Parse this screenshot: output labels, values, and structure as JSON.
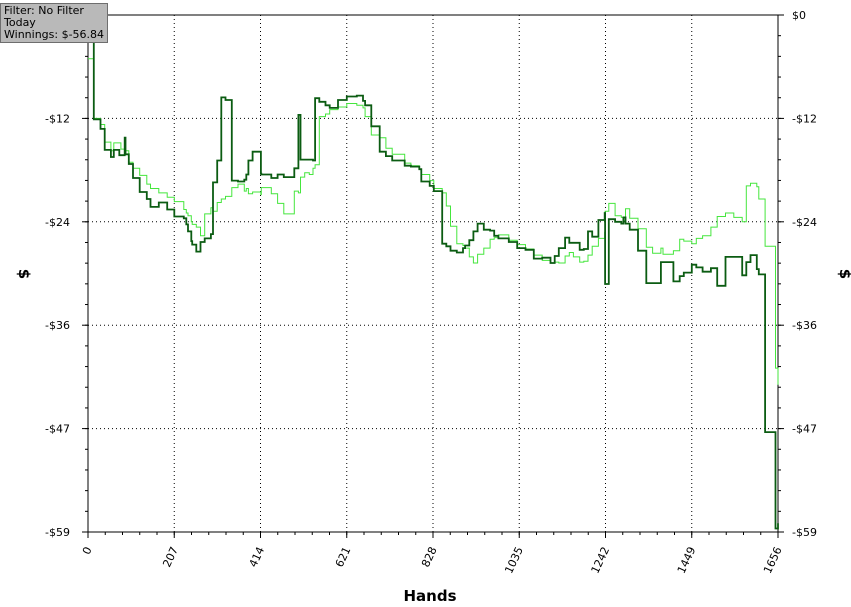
{
  "info_box": {
    "filter": "Filter: No Filter",
    "period": "Today",
    "winnings": "Winnings: $-56.84"
  },
  "chart_data": {
    "type": "line",
    "xlabel": "Hands",
    "ylabel": "$",
    "xlim": [
      0,
      1656
    ],
    "ylim": [
      -59,
      0
    ],
    "x_ticks": [
      "0",
      "207",
      "414",
      "621",
      "828",
      "1035",
      "1242",
      "1449",
      "1656"
    ],
    "y_ticks_left": [
      "$0",
      "-$12",
      "-$24",
      "-$36",
      "-$47",
      "-$59"
    ],
    "y_ticks_right": [
      "$0",
      "-$12",
      "-$24",
      "-$36",
      "-$47",
      "-$59"
    ],
    "y_tick_values": [
      0,
      -11.8,
      -23.6,
      -35.4,
      -47.2,
      -59
    ],
    "grid": true,
    "colors": {
      "dark_series": "#0b5c12",
      "light_series": "#45e63d"
    },
    "series": [
      {
        "x": [
          0,
          14,
          15,
          30,
          40,
          55,
          62,
          79,
          88,
          90,
          98,
          108,
          124,
          141,
          150,
          170,
          190,
          207,
          230,
          236,
          240,
          248,
          250,
          260,
          270,
          280,
          295,
          300,
          310,
          320,
          330,
          345,
          360,
          375,
          380,
          385,
          395,
          415,
          416,
          440,
          455,
          470,
          495,
          505,
          510,
          520,
          531,
          540,
          545,
          555,
          570,
          580,
          600,
          621,
          645,
          660,
          665,
          680,
          700,
          715,
          730,
          760,
          775,
          795,
          800,
          820,
          830,
          850,
          860,
          870,
          885,
          900,
          905,
          915,
          925,
          935,
          950,
          965,
          975,
          985,
          1010,
          1030,
          1050,
          1070,
          1090,
          1110,
          1120,
          1130,
          1145,
          1155,
          1165,
          1180,
          1190,
          1200,
          1210,
          1225,
          1240,
          1241,
          1250,
          1265,
          1280,
          1285,
          1290,
          1300,
          1320,
          1340,
          1355,
          1375,
          1380,
          1405,
          1420,
          1430,
          1449,
          1460,
          1475,
          1495,
          1510,
          1530,
          1550,
          1570,
          1580,
          1590,
          1605,
          1610,
          1625,
          1650,
          1656
        ],
        "y": [
          -5,
          -11.8,
          -11.8,
          -12.5,
          -14.5,
          -15.5,
          -14.6,
          -15.3,
          -14.8,
          -15.5,
          -16.8,
          -17.5,
          -18.3,
          -19.3,
          -19.8,
          -20.3,
          -20.8,
          -21.3,
          -22.2,
          -22.6,
          -22.9,
          -23.6,
          -23.9,
          -24.2,
          -25.2,
          -22.7,
          -22.0,
          -22.4,
          -21.4,
          -21.0,
          -20.7,
          -19.7,
          -19.3,
          -20.1,
          -19.8,
          -20.4,
          -20.2,
          -20.5,
          -19.7,
          -20.4,
          -21.5,
          -22.7,
          -20.1,
          -20.3,
          -18.5,
          -18.0,
          -18.2,
          -17.5,
          -17.1,
          -11.6,
          -11.3,
          -10.8,
          -10.5,
          -10.1,
          -10.3,
          -10.6,
          -11.6,
          -13.7,
          -14.0,
          -15.2,
          -15.9,
          -16.9,
          -17.2,
          -17.6,
          -18.2,
          -18.9,
          -19.8,
          -20.3,
          -21.8,
          -24.1,
          -26.1,
          -26.3,
          -26.6,
          -27.6,
          -28.3,
          -27.3,
          -26.6,
          -25.6,
          -25.4,
          -25.1,
          -25.7,
          -26.2,
          -26.7,
          -27.4,
          -28.0,
          -28.3,
          -28.2,
          -28.3,
          -27.5,
          -27.1,
          -27.6,
          -28.2,
          -28.1,
          -27.4,
          -26.4,
          -25.5,
          -24.8,
          -22.4,
          -21.5,
          -22.9,
          -23.1,
          -23.5,
          -22.1,
          -23.2,
          -24.4,
          -26.5,
          -27.2,
          -26.6,
          -27.3,
          -26.9,
          -25.6,
          -25.8,
          -26.1,
          -25.5,
          -25.2,
          -24.2,
          -23.0,
          -22.6,
          -23.1,
          -23.6,
          -19.5,
          -19.2,
          -19.6,
          -21.0,
          -26.4,
          -40.3,
          -42.2
        ],
        "style": "thin"
      },
      {
        "x": [
          0,
          14,
          15,
          30,
          40,
          55,
          62,
          75,
          88,
          90,
          98,
          108,
          124,
          141,
          150,
          170,
          190,
          207,
          230,
          236,
          240,
          248,
          250,
          260,
          270,
          280,
          295,
          300,
          310,
          320,
          330,
          345,
          360,
          375,
          380,
          385,
          395,
          415,
          416,
          440,
          455,
          470,
          495,
          505,
          510,
          520,
          531,
          540,
          545,
          555,
          570,
          580,
          600,
          621,
          645,
          660,
          665,
          680,
          700,
          715,
          730,
          760,
          775,
          795,
          800,
          820,
          830,
          850,
          860,
          870,
          885,
          900,
          905,
          915,
          925,
          935,
          950,
          965,
          975,
          985,
          1010,
          1030,
          1050,
          1070,
          1090,
          1110,
          1120,
          1130,
          1145,
          1155,
          1165,
          1180,
          1190,
          1200,
          1210,
          1225,
          1240,
          1241,
          1250,
          1265,
          1280,
          1285,
          1290,
          1300,
          1320,
          1340,
          1355,
          1375,
          1380,
          1405,
          1420,
          1430,
          1449,
          1460,
          1475,
          1495,
          1510,
          1530,
          1550,
          1570,
          1580,
          1590,
          1605,
          1610,
          1625,
          1650,
          1656
        ],
        "y": [
          -3,
          -11.9,
          -11.9,
          -13.0,
          -15.4,
          -16.2,
          -15.4,
          -16.0,
          -14.0,
          -15.9,
          -17.0,
          -18.6,
          -20.2,
          -21.0,
          -21.9,
          -21.4,
          -22.2,
          -23.0,
          -23.2,
          -23.9,
          -24.7,
          -25.8,
          -26.2,
          -27.0,
          -25.9,
          -25.5,
          -25.0,
          -19.1,
          -16.6,
          -9.4,
          -9.7,
          -18.9,
          -19.0,
          -18.8,
          -18.2,
          -16.6,
          -15.6,
          -18.1,
          -18.2,
          -18.6,
          -18.2,
          -18.5,
          -17.5,
          -11.4,
          -16.5,
          -16.5,
          -16.5,
          -16.6,
          -9.5,
          -9.9,
          -10.3,
          -10.6,
          -9.7,
          -9.3,
          -9.2,
          -9.8,
          -10.3,
          -12.7,
          -15.6,
          -16.1,
          -16.6,
          -17.2,
          -17.3,
          -17.6,
          -19.0,
          -19.5,
          -20.1,
          -26.1,
          -26.4,
          -26.9,
          -27.1,
          -26.6,
          -26.3,
          -25.7,
          -24.7,
          -23.8,
          -24.5,
          -24.6,
          -25.2,
          -25.5,
          -25.9,
          -26.6,
          -26.8,
          -27.8,
          -27.7,
          -28.3,
          -27.5,
          -26.6,
          -25.4,
          -26.0,
          -26.0,
          -26.8,
          -26.7,
          -24.7,
          -25.3,
          -23.4,
          -22.6,
          -30.7,
          -23.3,
          -23.6,
          -23.8,
          -23.1,
          -23.8,
          -24.5,
          -26.9,
          -30.6,
          -30.6,
          -28.2,
          -28.2,
          -30.4,
          -29.8,
          -29.4,
          -28.5,
          -28.8,
          -29.3,
          -28.9,
          -30.9,
          -27.6,
          -27.6,
          -29.7,
          -28.2,
          -27.4,
          -29.0,
          -29.6,
          -47.6,
          -58.6,
          -58.0
        ]
      }
    ]
  }
}
